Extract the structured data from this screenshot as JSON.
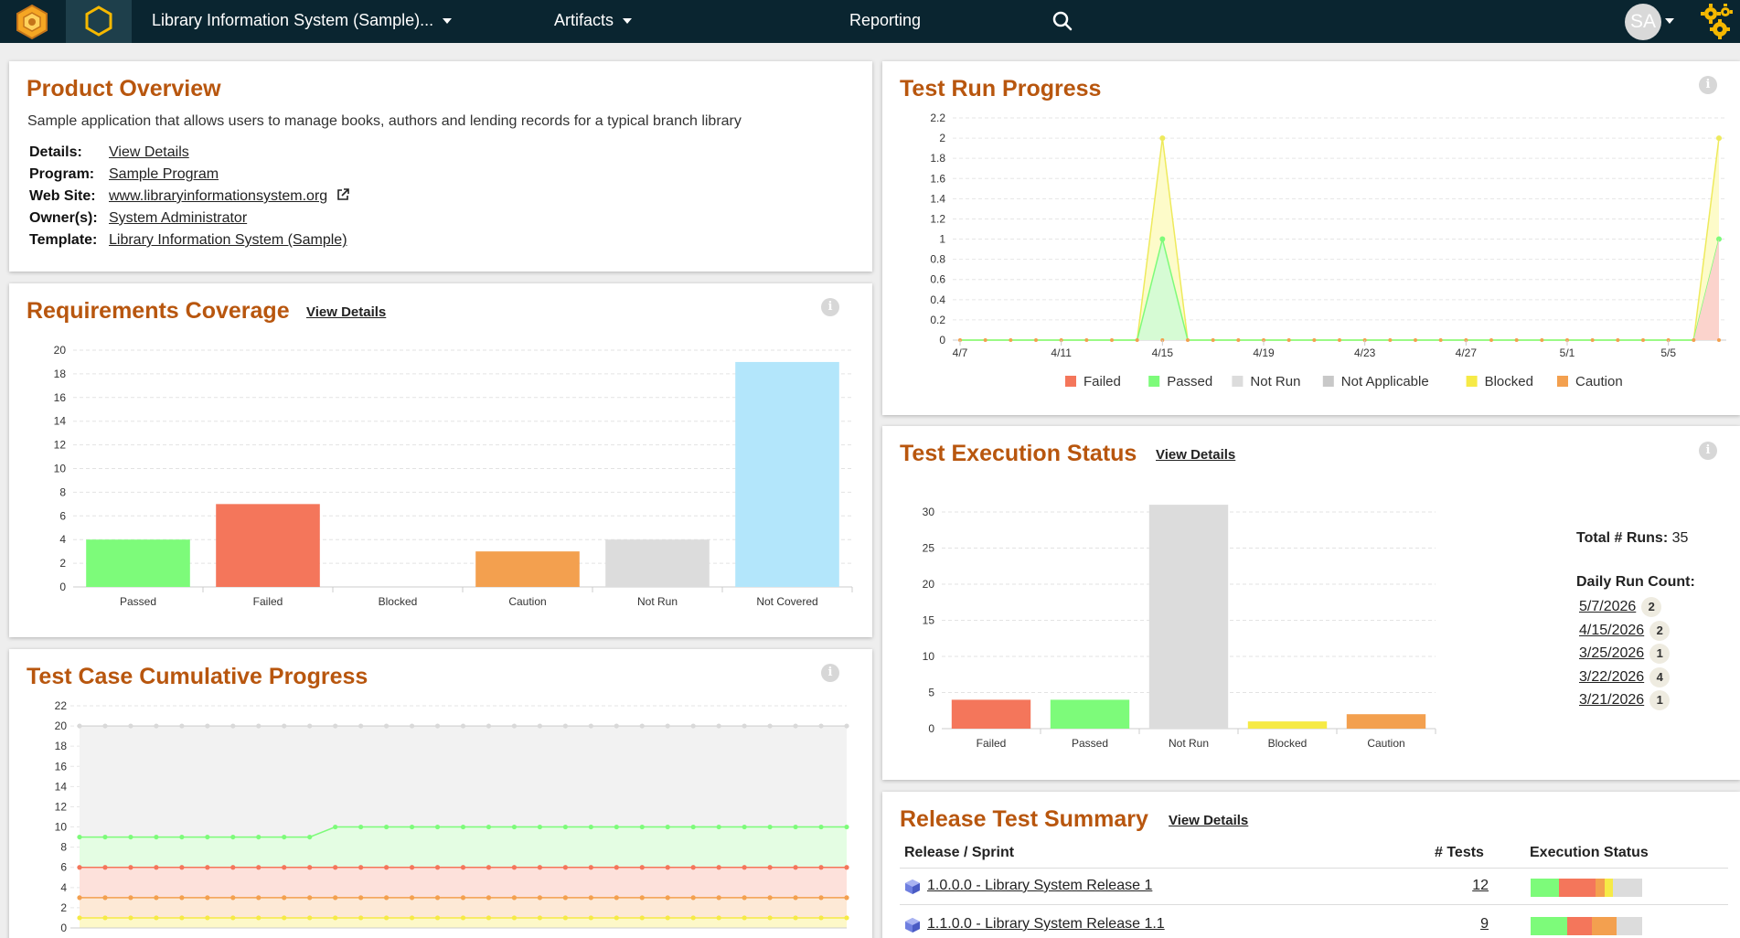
{
  "header": {
    "project_name": "Library Information System (Sample)...",
    "artifacts_label": "Artifacts",
    "reporting_label": "Reporting",
    "user_initials": "SA"
  },
  "product_overview": {
    "title": "Product Overview",
    "description": "Sample application that allows users to manage books, authors and lending records for a typical branch library",
    "details_label": "Details:",
    "details_value": "View Details",
    "program_label": "Program:",
    "program_value": "Sample Program",
    "website_label": "Web Site:",
    "website_value": "www.libraryinformationsystem.org",
    "owners_label": "Owner(s):",
    "owners_value": "System Administrator",
    "template_label": "Template:",
    "template_value": "Library Information System (Sample)"
  },
  "requirements_coverage": {
    "title": "Requirements Coverage",
    "view_details": "View Details",
    "chart_data": {
      "type": "bar",
      "categories": [
        "Passed",
        "Failed",
        "Blocked",
        "Caution",
        "Not Run",
        "Not Covered"
      ],
      "values": [
        4,
        7,
        0,
        3,
        4,
        19
      ],
      "colors": [
        "#7dfb7a",
        "#f4765b",
        "#f6ea46",
        "#f3a04f",
        "#dcdcdc",
        "#b3e6fb"
      ],
      "ylim": [
        0,
        20
      ],
      "yticks": [
        0,
        2,
        4,
        6,
        8,
        10,
        12,
        14,
        16,
        18,
        20
      ],
      "grid": true
    }
  },
  "test_case_cumulative": {
    "title": "Test Case Cumulative Progress",
    "chart_data": {
      "type": "area",
      "ylim": [
        0,
        22
      ],
      "yticks": [
        0,
        2,
        4,
        6,
        8,
        10,
        12,
        14,
        16,
        18,
        20,
        22
      ],
      "points": 31,
      "series": [
        {
          "color": "#d9d9d9",
          "values": [
            20,
            20,
            20,
            20,
            20,
            20,
            20,
            20,
            20,
            20,
            20,
            20,
            20,
            20,
            20,
            20,
            20,
            20,
            20,
            20,
            20,
            20,
            20,
            20,
            20,
            20,
            20,
            20,
            20,
            20,
            20
          ]
        },
        {
          "color": "#7dfb7a",
          "values": [
            9,
            9,
            9,
            9,
            9,
            9,
            9,
            9,
            9,
            9,
            10,
            10,
            10,
            10,
            10,
            10,
            10,
            10,
            10,
            10,
            10,
            10,
            10,
            10,
            10,
            10,
            10,
            10,
            10,
            10,
            10
          ]
        },
        {
          "color": "#f4765b",
          "values": [
            6,
            6,
            6,
            6,
            6,
            6,
            6,
            6,
            6,
            6,
            6,
            6,
            6,
            6,
            6,
            6,
            6,
            6,
            6,
            6,
            6,
            6,
            6,
            6,
            6,
            6,
            6,
            6,
            6,
            6,
            6
          ]
        },
        {
          "color": "#f3a04f",
          "values": [
            3,
            3,
            3,
            3,
            3,
            3,
            3,
            3,
            3,
            3,
            3,
            3,
            3,
            3,
            3,
            3,
            3,
            3,
            3,
            3,
            3,
            3,
            3,
            3,
            3,
            3,
            3,
            3,
            3,
            3,
            3
          ]
        },
        {
          "color": "#f6ea46",
          "values": [
            1,
            1,
            1,
            1,
            1,
            1,
            1,
            1,
            1,
            1,
            1,
            1,
            1,
            1,
            1,
            1,
            1,
            1,
            1,
            1,
            1,
            1,
            1,
            1,
            1,
            1,
            1,
            1,
            1,
            1,
            1
          ]
        }
      ]
    }
  },
  "test_run_progress": {
    "title": "Test Run Progress",
    "chart_data": {
      "type": "area",
      "x": [
        "4/7",
        "4/11",
        "4/15",
        "4/19",
        "4/23",
        "4/27",
        "5/1",
        "5/5"
      ],
      "ylim": [
        0,
        2.2
      ],
      "yticks": [
        0,
        0.2,
        0.4,
        0.6,
        0.8,
        1,
        1.2,
        1.4,
        1.6,
        1.8,
        2,
        2.2
      ],
      "legend": [
        "Failed",
        "Passed",
        "Not Run",
        "Not Applicable",
        "Blocked",
        "Caution"
      ],
      "legend_colors": [
        "#f4765b",
        "#7dfb7a",
        "#dcdcdc",
        "#c8c8c8",
        "#f6ea46",
        "#f3a04f"
      ],
      "legend_position": "bottom",
      "dates": [
        "4/7",
        "4/8",
        "4/9",
        "4/10",
        "4/11",
        "4/12",
        "4/13",
        "4/14",
        "4/15",
        "4/16",
        "4/17",
        "4/18",
        "4/19",
        "4/20",
        "4/21",
        "4/22",
        "4/23",
        "4/24",
        "4/25",
        "4/26",
        "4/27",
        "4/28",
        "4/29",
        "4/30",
        "5/1",
        "5/2",
        "5/3",
        "5/4",
        "5/5",
        "5/6",
        "5/7"
      ],
      "passed": [
        0,
        0,
        0,
        0,
        0,
        0,
        0,
        0,
        1,
        0,
        0,
        0,
        0,
        0,
        0,
        0,
        0,
        0,
        0,
        0,
        0,
        0,
        0,
        0,
        0,
        0,
        0,
        0,
        0,
        0,
        1
      ],
      "blocked_total": [
        0,
        0,
        0,
        0,
        0,
        0,
        0,
        0,
        2,
        0,
        0,
        0,
        0,
        0,
        0,
        0,
        0,
        0,
        0,
        0,
        0,
        0,
        0,
        0,
        0,
        0,
        0,
        0,
        0,
        0,
        2
      ],
      "failed": [
        0,
        0,
        0,
        0,
        0,
        0,
        0,
        0,
        0,
        0,
        0,
        0,
        0,
        0,
        0,
        0,
        0,
        0,
        0,
        0,
        0,
        0,
        0,
        0,
        0,
        0,
        0,
        0,
        0,
        0,
        0
      ]
    }
  },
  "test_execution_status": {
    "title": "Test Execution Status",
    "view_details": "View Details",
    "chart_data": {
      "type": "bar",
      "categories": [
        "Failed",
        "Passed",
        "Not Run",
        "Blocked",
        "Caution"
      ],
      "values": [
        4,
        4,
        31,
        1,
        2
      ],
      "colors": [
        "#f4765b",
        "#7dfb7a",
        "#dcdcdc",
        "#f6ea46",
        "#f3a04f"
      ],
      "ylim": [
        0,
        30
      ],
      "yticks": [
        0,
        5,
        10,
        15,
        20,
        25,
        30
      ],
      "grid": true
    },
    "total_runs_label": "Total # Runs:",
    "total_runs_value": "35",
    "daily_run_label": "Daily Run Count:",
    "daily_runs": [
      {
        "date": "5/7/2026",
        "count": "2"
      },
      {
        "date": "4/15/2026",
        "count": "2"
      },
      {
        "date": "3/25/2026",
        "count": "1"
      },
      {
        "date": "3/22/2026",
        "count": "4"
      },
      {
        "date": "3/21/2026",
        "count": "1"
      }
    ]
  },
  "release_test_summary": {
    "title": "Release Test Summary",
    "view_details": "View Details",
    "col_release": "Release / Sprint",
    "col_tests": "# Tests",
    "col_status": "Execution Status",
    "rows": [
      {
        "name": "1.0.0.0 - Library System Release 1",
        "tests": "12",
        "status": [
          {
            "color": "#7dfb7a",
            "pct": 25
          },
          {
            "color": "#f4765b",
            "pct": 33
          },
          {
            "color": "#f3a04f",
            "pct": 8
          },
          {
            "color": "#f6ea46",
            "pct": 8
          },
          {
            "color": "#dcdcdc",
            "pct": 26
          }
        ]
      },
      {
        "name": "1.1.0.0 - Library System Release 1.1",
        "tests": "9",
        "status": [
          {
            "color": "#7dfb7a",
            "pct": 33
          },
          {
            "color": "#f4765b",
            "pct": 22
          },
          {
            "color": "#f3a04f",
            "pct": 22
          },
          {
            "color": "#dcdcdc",
            "pct": 23
          }
        ]
      }
    ]
  }
}
